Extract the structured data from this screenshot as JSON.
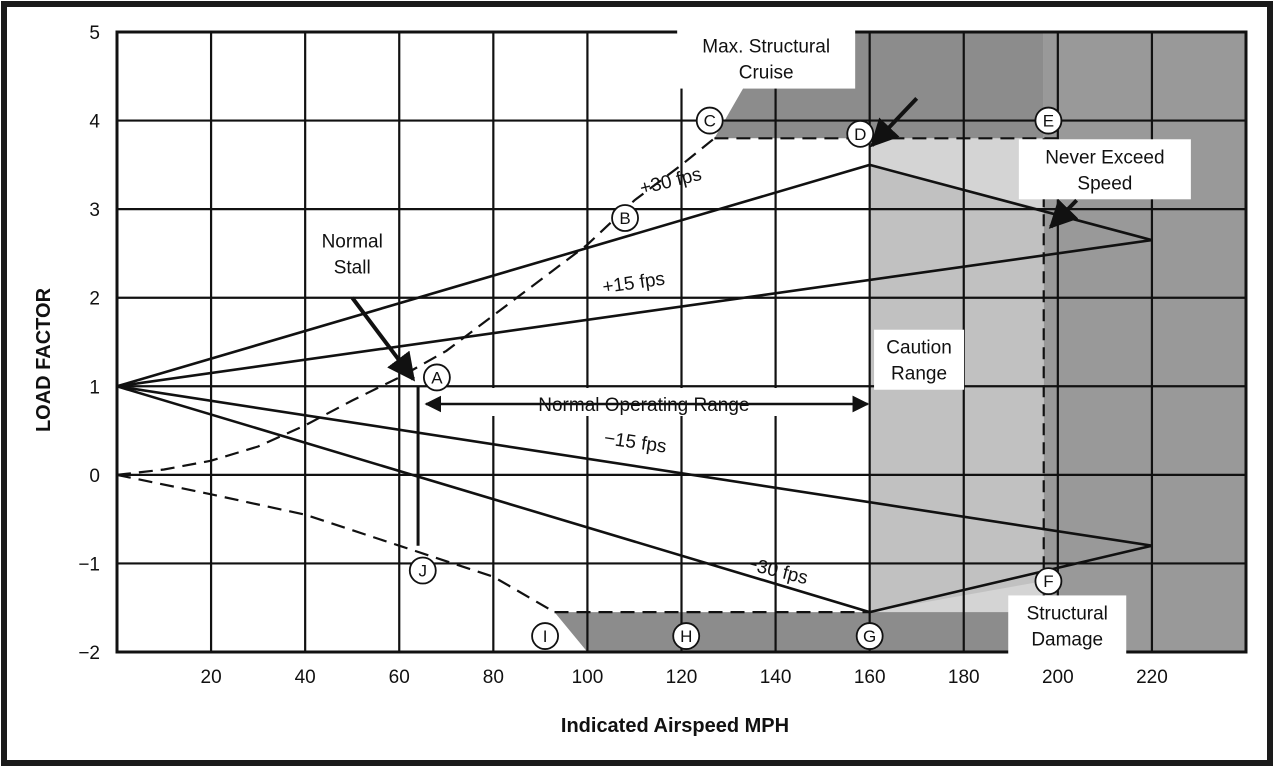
{
  "chart_data": {
    "type": "line",
    "title": "",
    "xlabel": "Indicated Airspeed MPH",
    "ylabel": "LOAD FACTOR",
    "xlim": [
      0,
      240
    ],
    "ylim": [
      -2,
      5
    ],
    "x_ticks": [
      20,
      40,
      60,
      80,
      100,
      120,
      140,
      160,
      180,
      200,
      220
    ],
    "y_ticks": [
      5,
      4,
      3,
      2,
      1,
      0,
      -1,
      -2
    ],
    "x_tick_labels": [
      "20",
      "40",
      "60",
      "80",
      "100",
      "120",
      "140",
      "160",
      "180",
      "200",
      "220"
    ],
    "y_tick_labels": [
      "5",
      "4",
      "3",
      "2",
      "1",
      "0",
      "−1",
      "−2"
    ],
    "grid": true,
    "colors": {
      "frame": "#1a1a1a",
      "caution": "#d4d4d4",
      "damage_light": "#b0b0b0",
      "damage_dark": "#8c8c8c",
      "never_exceed_zone": "#999999"
    },
    "series": [
      {
        "name": "+30 fps",
        "x": [
          0,
          160,
          220
        ],
        "y": [
          1,
          3.5,
          2.65
        ]
      },
      {
        "name": "+15 fps",
        "x": [
          0,
          220
        ],
        "y": [
          1,
          2.65
        ]
      },
      {
        "name": "−15 fps",
        "x": [
          0,
          220
        ],
        "y": [
          1,
          -0.8
        ]
      },
      {
        "name": "−30 fps",
        "x": [
          0,
          160,
          220
        ],
        "y": [
          1,
          -1.55,
          -0.8
        ]
      }
    ],
    "boundaries": {
      "positive_stall": {
        "x": [
          0,
          10,
          20,
          30,
          40,
          50,
          60,
          70,
          80,
          90,
          100,
          110,
          120,
          127
        ],
        "y": [
          0,
          0.06,
          0.16,
          0.32,
          0.56,
          0.84,
          1.1,
          1.4,
          1.8,
          2.2,
          2.6,
          3.1,
          3.5,
          3.8
        ]
      },
      "negative_stall": {
        "x": [
          0,
          20,
          40,
          60,
          80,
          93
        ],
        "y": [
          0,
          -0.22,
          -0.45,
          -0.8,
          -1.15,
          -1.55
        ]
      },
      "positive_limit": {
        "x": [
          127,
          200
        ],
        "y": [
          3.8,
          3.8
        ]
      },
      "negative_limit": {
        "x": [
          93,
          160
        ],
        "y": [
          -1.55,
          -1.55
        ]
      },
      "never_exceed_speed": 197,
      "max_structural_cruise": 160
    },
    "normal_stall_speed": 64,
    "normal_operating_range": [
      64,
      160
    ],
    "points": [
      {
        "id": "A",
        "x": 68,
        "y": 1.1
      },
      {
        "id": "B",
        "x": 108,
        "y": 2.9
      },
      {
        "id": "C",
        "x": 126,
        "y": 4.0
      },
      {
        "id": "D",
        "x": 158,
        "y": 3.85
      },
      {
        "id": "E",
        "x": 198,
        "y": 4.0
      },
      {
        "id": "F",
        "x": 198,
        "y": -1.2
      },
      {
        "id": "G",
        "x": 160,
        "y": -1.82
      },
      {
        "id": "H",
        "x": 121,
        "y": -1.82
      },
      {
        "id": "I",
        "x": 91,
        "y": -1.82
      },
      {
        "id": "J",
        "x": 65,
        "y": -1.08
      }
    ],
    "annotations": {
      "max_structural_cruise": "Max. Structural Cruise",
      "never_exceed_speed": "Never Exceed Speed",
      "normal_stall": "Normal Stall",
      "caution_range": "Caution Range",
      "normal_operating_range": "Normal Operating Range",
      "structural_damage": "Structural Damage"
    }
  }
}
